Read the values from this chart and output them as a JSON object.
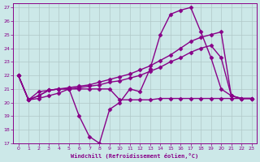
{
  "xlabel": "Windchill (Refroidissement éolien,°C)",
  "xlim": [
    -0.5,
    23.5
  ],
  "ylim": [
    17,
    27.3
  ],
  "xticks": [
    0,
    1,
    2,
    3,
    4,
    5,
    6,
    7,
    8,
    9,
    10,
    11,
    12,
    13,
    14,
    15,
    16,
    17,
    18,
    19,
    20,
    21,
    22,
    23
  ],
  "yticks": [
    17,
    18,
    19,
    20,
    21,
    22,
    23,
    24,
    25,
    26,
    27
  ],
  "background_color": "#cce8e8",
  "grid_color": "#b0c8c8",
  "line_color": "#880088",
  "lines": [
    {
      "x": [
        0,
        1,
        2,
        3,
        4,
        5,
        6,
        7,
        8,
        9,
        10,
        11,
        12,
        13,
        14,
        15,
        16,
        17,
        18,
        19,
        20,
        21,
        22,
        23
      ],
      "y": [
        22.0,
        20.2,
        20.8,
        20.9,
        21.0,
        21.0,
        19.0,
        17.5,
        17.0,
        19.5,
        20.0,
        21.0,
        20.8,
        22.5,
        25.0,
        26.5,
        26.8,
        27.0,
        25.2,
        23.3,
        21.0,
        20.5,
        20.3,
        20.3
      ],
      "marker": "D",
      "markersize": 2.5,
      "linewidth": 1.0
    },
    {
      "x": [
        0,
        1,
        2,
        3,
        4,
        5,
        6,
        7,
        8,
        9,
        10,
        11,
        12,
        13,
        14,
        15,
        16,
        17,
        18,
        19,
        20,
        21,
        22,
        23
      ],
      "y": [
        22.0,
        20.2,
        20.5,
        20.9,
        21.0,
        21.1,
        21.2,
        21.3,
        21.5,
        21.7,
        21.9,
        22.1,
        22.4,
        22.7,
        23.1,
        23.5,
        24.0,
        24.5,
        24.8,
        25.0,
        25.2,
        20.5,
        20.3,
        20.3
      ],
      "marker": "D",
      "markersize": 2.5,
      "linewidth": 1.0
    },
    {
      "x": [
        0,
        1,
        2,
        3,
        4,
        5,
        6,
        7,
        8,
        9,
        10,
        11,
        12,
        13,
        14,
        15,
        16,
        17,
        18,
        19,
        20,
        21,
        22,
        23
      ],
      "y": [
        22.0,
        20.2,
        20.5,
        20.9,
        21.0,
        21.0,
        21.1,
        21.2,
        21.3,
        21.5,
        21.6,
        21.8,
        22.0,
        22.3,
        22.6,
        23.0,
        23.3,
        23.7,
        24.0,
        24.2,
        23.3,
        20.5,
        20.3,
        20.3
      ],
      "marker": "D",
      "markersize": 2.5,
      "linewidth": 1.0
    },
    {
      "x": [
        0,
        1,
        2,
        3,
        4,
        5,
        6,
        7,
        8,
        9,
        10,
        11,
        12,
        13,
        14,
        15,
        16,
        17,
        18,
        19,
        20,
        21,
        22,
        23
      ],
      "y": [
        22.0,
        20.2,
        20.3,
        20.5,
        20.7,
        21.0,
        21.0,
        21.0,
        21.0,
        21.0,
        20.2,
        20.2,
        20.2,
        20.2,
        20.3,
        20.3,
        20.3,
        20.3,
        20.3,
        20.3,
        20.3,
        20.3,
        20.3,
        20.3
      ],
      "marker": "D",
      "markersize": 2.5,
      "linewidth": 1.0
    }
  ]
}
